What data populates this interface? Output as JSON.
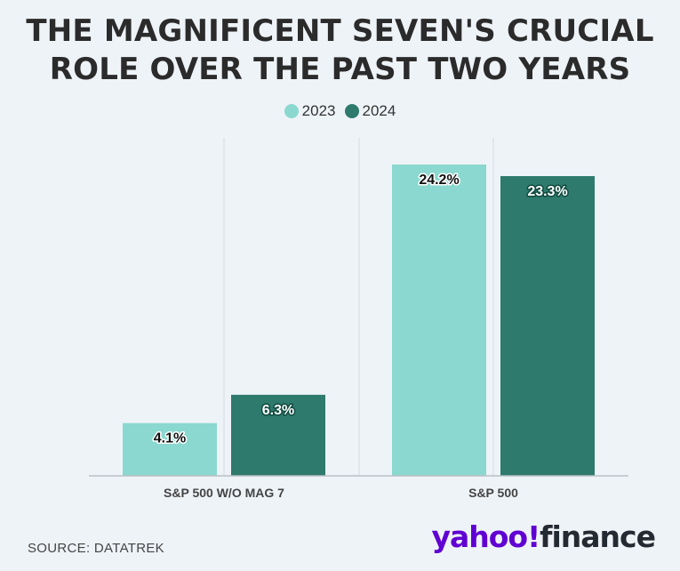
{
  "title_line1": "THE MAGNIFICENT SEVEN'S CRUCIAL",
  "title_line2": "ROLE OVER THE PAST TWO YEARS",
  "colors": {
    "series_2023": "#8ad8cf",
    "series_2024": "#2e7a6c",
    "label_halo_2023": "#ffffff",
    "label_halo_2024": "#0f4a3f",
    "grid": "#d5dbe0",
    "axis": "#b9c0c6",
    "background": "#eef3f8"
  },
  "source": "SOURCE: DATATREK",
  "logo": {
    "yahoo": "yahoo!",
    "finance": "finance"
  },
  "chart_data": {
    "type": "bar",
    "title": "THE MAGNIFICENT SEVEN'S CRUCIAL ROLE OVER THE PAST TWO YEARS",
    "categories": [
      "S&P 500 W/O MAG 7",
      "S&P 500"
    ],
    "series": [
      {
        "name": "2023",
        "values": [
          4.1,
          24.2
        ],
        "labels": [
          "4.1%",
          "24.2%"
        ]
      },
      {
        "name": "2024",
        "values": [
          6.3,
          23.3
        ],
        "labels": [
          "6.3%",
          "23.3%"
        ]
      }
    ],
    "ylim": [
      0,
      24.2
    ],
    "grid": true,
    "legend": "top-center"
  }
}
